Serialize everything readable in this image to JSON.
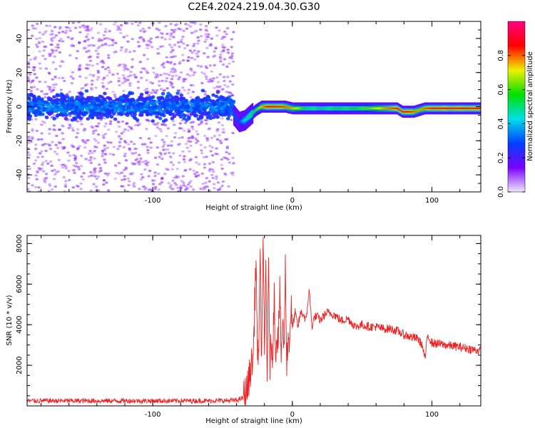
{
  "figure": {
    "title": "C2E4.2024.219.04.30.G30"
  },
  "chart_data": [
    {
      "type": "heatmap",
      "xlabel": "Height of straight line (km)",
      "ylabel": "Frequency (Hz)",
      "xlim": [
        -190,
        135
      ],
      "ylim": [
        -50,
        50
      ],
      "xticks": [
        -100,
        0,
        100
      ],
      "yticks": [
        -40,
        -20,
        0,
        20,
        40
      ],
      "grid": false,
      "colorbar": {
        "label": "Normalized spectral amplitude",
        "range": [
          0,
          1
        ],
        "ticks": [
          0.0,
          0.2,
          0.4,
          0.6,
          0.8
        ],
        "tick_labels": [
          "0.0",
          "0.2",
          "0.4",
          "0.6",
          "0.8"
        ],
        "colormap": [
          "#f0e8ff",
          "#7b00ff",
          "#0040ff",
          "#00e0e8",
          "#00e000",
          "#f0f000",
          "#ff0000",
          "#ff0080"
        ]
      },
      "noise_region": {
        "x_range": [
          -190,
          -42
        ],
        "band_halfwidth_hz": 10,
        "scatter_halfwidth_hz": 50
      },
      "signal_track": {
        "x": [
          -42,
          -38,
          -34,
          -30,
          -26,
          -22,
          -18,
          -14,
          -10,
          -5,
          0,
          10,
          20,
          30,
          40,
          50,
          60,
          70,
          75,
          79,
          83,
          87,
          91,
          95,
          100,
          105,
          110,
          120,
          135
        ],
        "freq_hz": [
          -5,
          -9,
          -8,
          -5,
          -2,
          0,
          0,
          0,
          0,
          0,
          -1,
          -1,
          -1,
          -1,
          -1,
          -1,
          -1,
          -1,
          -1,
          -3,
          -3,
          -3,
          -2,
          -1,
          -1,
          -1,
          -1,
          -1,
          -1
        ],
        "amplitude": [
          0.3,
          0.3,
          0.45,
          0.5,
          0.6,
          0.75,
          0.85,
          0.85,
          0.85,
          0.8,
          0.75,
          0.55,
          0.5,
          0.55,
          0.55,
          0.6,
          0.7,
          0.8,
          0.85,
          0.85,
          0.85,
          0.8,
          0.75,
          0.8,
          0.85,
          0.85,
          0.85,
          0.85,
          0.85
        ]
      }
    },
    {
      "type": "line",
      "xlabel": "Height of straight line (km)",
      "ylabel": "SNR (10 * v/v)",
      "xlim": [
        -190,
        135
      ],
      "ylim": [
        0,
        8400
      ],
      "xticks": [
        -100,
        0,
        100
      ],
      "yticks": [
        2000,
        4000,
        6000,
        8000
      ],
      "grid": false,
      "series": [
        {
          "color": "#ee2222",
          "x": [
            -190,
            -150,
            -100,
            -60,
            -40,
            -35,
            -32,
            -30,
            -28,
            -26,
            -25,
            -24,
            -23,
            -22,
            -21,
            -20,
            -19,
            -18,
            -17,
            -16,
            -15,
            -14,
            -13,
            -12,
            -11,
            -10,
            -9,
            -8,
            -7,
            -6,
            -5,
            -4,
            -3,
            -2,
            -1,
            0,
            2,
            4,
            6,
            8,
            10,
            12,
            14,
            16,
            18,
            20,
            22,
            25,
            30,
            35,
            40,
            45,
            50,
            55,
            60,
            65,
            70,
            75,
            80,
            85,
            90,
            93,
            95,
            97,
            100,
            110,
            120,
            135
          ],
          "values": [
            250,
            250,
            250,
            250,
            270,
            400,
            900,
            1800,
            2400,
            7500,
            2100,
            3300,
            7000,
            2100,
            8300,
            2300,
            7100,
            1600,
            6600,
            2100,
            3200,
            2600,
            5400,
            2800,
            3500,
            3400,
            5500,
            2500,
            4200,
            2700,
            6800,
            2300,
            3300,
            3200,
            5000,
            3800,
            4600,
            3900,
            4600,
            4500,
            4200,
            5800,
            3900,
            4400,
            4400,
            4200,
            4400,
            4600,
            4500,
            4200,
            4300,
            3900,
            4000,
            3900,
            3900,
            3800,
            3800,
            3700,
            3500,
            3400,
            3300,
            3000,
            2300,
            3500,
            3100,
            3000,
            2900,
            2700
          ]
        }
      ]
    }
  ]
}
